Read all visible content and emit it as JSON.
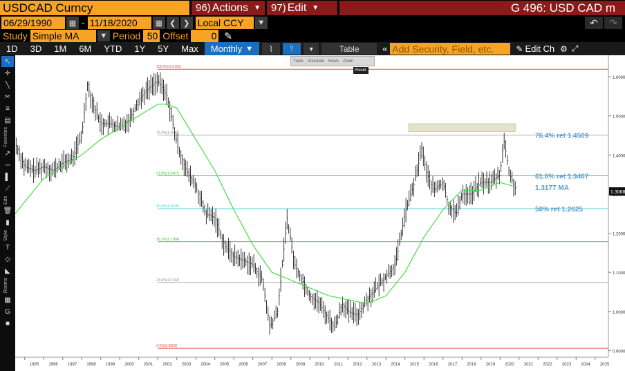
{
  "topbar": {
    "security": "USDCAD Curncy",
    "actions_num": "96)",
    "actions_label": "Actions",
    "edit_num": "97)",
    "edit_label": "Edit",
    "title": "G 496: USD CAD m"
  },
  "dates": {
    "start": "06/29/1990",
    "sep": "-",
    "end": "11/18/2020",
    "currency": "Local CCY"
  },
  "study": {
    "label": "Study",
    "value": "Simple MA",
    "period_label": "Period",
    "period_value": "50",
    "offset_label": "Offset",
    "offset_value": "0"
  },
  "periods": {
    "tabs": [
      "1D",
      "3D",
      "1M",
      "6M",
      "YTD",
      "1Y",
      "5Y",
      "Max"
    ],
    "selected": "Monthly",
    "table_label": "Table",
    "search_placeholder": "Add Security, Field, etc.",
    "edit_chart_label": "Edit Ch"
  },
  "popup": {
    "items": [
      "Track",
      "Annotate",
      "News",
      "Zoom"
    ],
    "reset": "Reset"
  },
  "left_toolbar": {
    "labels": [
      "Favorites",
      "Edit",
      "Style",
      "Rooms"
    ]
  },
  "chart_data": {
    "type": "line",
    "x_axis_years": [
      "1995",
      "1996",
      "1997",
      "1998",
      "1999",
      "2000",
      "2001",
      "2002",
      "2003",
      "2004",
      "2005",
      "2006",
      "2007",
      "2008",
      "2009",
      "2010",
      "2011",
      "2012",
      "2013",
      "2014",
      "2015",
      "2016",
      "2017",
      "2018",
      "2019",
      "2020",
      "2021",
      "2022",
      "2023",
      "2024",
      "2025"
    ],
    "y_ticks": [
      "1.6000",
      "1.5000",
      "1.4000",
      "1.3000",
      "1.2000",
      "1.1000",
      "1.0000",
      "0.9000"
    ],
    "ylim": [
      0.9,
      1.65
    ],
    "price_label": "1.3068",
    "fib_levels": [
      {
        "label": "100.0%(1.6193)",
        "value": 1.6193,
        "color": "#e05050"
      },
      {
        "label": "76.4%(1.4509)",
        "value": 1.4509,
        "color": "#aaaaaa"
      },
      {
        "label": "61.8%(1.3467)",
        "value": 1.3467,
        "color": "#33cc33"
      },
      {
        "label": "50.0%(1.2625)",
        "value": 1.2625,
        "color": "#44cccc"
      },
      {
        "label": "38.2%(1.1784)",
        "value": 1.1784,
        "color": "#33cc33"
      },
      {
        "label": "23.6%(1.0742)",
        "value": 1.0742,
        "color": "#aaaaaa"
      },
      {
        "label": "0.0%(0.9058)",
        "value": 0.9058,
        "color": "#e05050"
      }
    ],
    "annotations": [
      {
        "text": "76.4% ret 1.4509",
        "value": 1.4509
      },
      {
        "text": "61.8% ret 1.3467",
        "value": 1.3467
      },
      {
        "text": "1.3177 MA",
        "value": 1.3177
      },
      {
        "text": "50% ret 1.2625",
        "value": 1.2625
      }
    ],
    "series": [
      {
        "name": "USDCAD",
        "color": "#222222",
        "x": [
          1994.5,
          1995,
          1995.5,
          1996,
          1996.5,
          1997,
          1997.5,
          1998,
          1998.3,
          1998.6,
          1999,
          1999.5,
          2000,
          2000.5,
          2001,
          2001.5,
          2002,
          2002.5,
          2003,
          2003.5,
          2004,
          2004.5,
          2005,
          2005.5,
          2006,
          2006.5,
          2007,
          2007.5,
          2007.9,
          2008.3,
          2008.8,
          2009.2,
          2009.6,
          2010,
          2010.5,
          2011,
          2011.3,
          2011.7,
          2012,
          2012.5,
          2013,
          2013.5,
          2014,
          2014.5,
          2015,
          2015.5,
          2015.9,
          2016.1,
          2016.5,
          2017,
          2017.3,
          2017.7,
          2018,
          2018.5,
          2019,
          2019.5,
          2020,
          2020.2,
          2020.5,
          2020.88
        ],
        "y": [
          1.43,
          1.37,
          1.36,
          1.37,
          1.36,
          1.38,
          1.39,
          1.45,
          1.58,
          1.53,
          1.48,
          1.48,
          1.47,
          1.49,
          1.54,
          1.57,
          1.59,
          1.55,
          1.43,
          1.36,
          1.32,
          1.25,
          1.24,
          1.17,
          1.14,
          1.13,
          1.12,
          1.08,
          0.96,
          1.0,
          1.24,
          1.12,
          1.08,
          1.04,
          1.02,
          0.98,
          0.96,
          1.02,
          1.0,
          0.99,
          1.03,
          1.06,
          1.09,
          1.12,
          1.25,
          1.33,
          1.42,
          1.36,
          1.31,
          1.33,
          1.27,
          1.25,
          1.3,
          1.3,
          1.33,
          1.33,
          1.35,
          1.44,
          1.35,
          1.307
        ]
      },
      {
        "name": "MA",
        "color": "#44dd44",
        "x": [
          1994.5,
          1995,
          1996,
          1997,
          1998,
          1999,
          2000,
          2001,
          2002,
          2002.5,
          2003,
          2004,
          2005,
          2006,
          2007,
          2008,
          2009,
          2010,
          2011,
          2012,
          2013,
          2014,
          2015,
          2016,
          2017,
          2018,
          2019,
          2020,
          2020.88
        ],
        "y": [
          1.25,
          1.28,
          1.34,
          1.37,
          1.4,
          1.44,
          1.47,
          1.5,
          1.53,
          1.53,
          1.52,
          1.44,
          1.36,
          1.26,
          1.17,
          1.1,
          1.08,
          1.06,
          1.04,
          1.03,
          1.02,
          1.04,
          1.1,
          1.19,
          1.26,
          1.31,
          1.31,
          1.33,
          1.3177
        ]
      }
    ],
    "range_highlight": {
      "x0": 2015.2,
      "x1": 2020.8,
      "y0": 1.46,
      "y1": 1.48
    }
  }
}
